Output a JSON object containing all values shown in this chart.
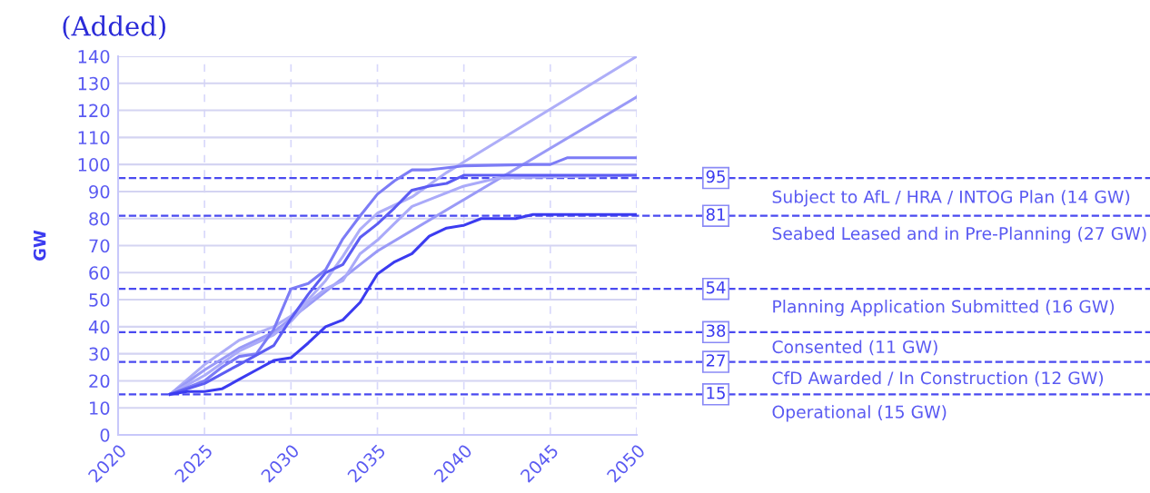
{
  "chart_data": {
    "type": "line",
    "title": "(Added)",
    "ylabel": "GW",
    "xlim": [
      2020,
      2050
    ],
    "xticks": [
      2020,
      2025,
      2030,
      2035,
      2040,
      2045,
      2050
    ],
    "ylim": [
      0,
      140
    ],
    "yticks": [
      0,
      10,
      20,
      30,
      40,
      50,
      60,
      70,
      80,
      90,
      100,
      110,
      120,
      130,
      140
    ],
    "grid": true,
    "marker": "none",
    "line_style": "solid",
    "series": [
      {
        "color": "#aeaef8",
        "x": [
          2023,
          2025,
          2027,
          2029,
          2030,
          2031,
          2032,
          2033,
          2034,
          2035,
          2037,
          2039,
          2050
        ],
        "values": [
          15,
          26,
          35,
          40,
          44,
          50,
          57,
          66,
          76,
          82,
          88,
          97,
          140
        ]
      },
      {
        "color": "#9a9af7",
        "x": [
          2023,
          2025,
          2027,
          2029,
          2030,
          2031,
          2032,
          2033,
          2034,
          2035,
          2050
        ],
        "values": [
          15,
          24,
          32,
          38,
          43,
          48,
          53,
          58,
          63,
          68,
          125
        ]
      },
      {
        "color": "#aaaaf9",
        "x": [
          2023,
          2025,
          2027,
          2029,
          2030,
          2031,
          2032,
          2033,
          2034,
          2035,
          2037,
          2040,
          2042,
          2050
        ],
        "values": [
          15,
          22,
          31,
          37,
          42,
          49,
          54,
          57,
          67,
          72,
          84.5,
          92,
          95,
          96
        ]
      },
      {
        "color": "#7c7cf6",
        "x": [
          2023,
          2025,
          2026,
          2027,
          2028,
          2029,
          2030,
          2031,
          2032,
          2033,
          2034,
          2035,
          2036,
          2037,
          2038,
          2040,
          2044,
          2045,
          2046,
          2050
        ],
        "values": [
          15,
          20,
          25,
          29,
          30,
          39,
          54,
          56,
          61,
          72.5,
          81,
          89,
          94,
          98,
          98,
          99.5,
          100,
          100,
          102.5,
          102.5
        ]
      },
      {
        "color": "#5c5cf3",
        "x": [
          2023,
          2025,
          2027,
          2029,
          2030,
          2031,
          2032,
          2033,
          2034,
          2035,
          2036,
          2037,
          2038,
          2039,
          2040,
          2050
        ],
        "values": [
          15,
          19,
          26,
          33,
          43,
          52,
          60,
          63,
          73,
          78,
          84,
          90.5,
          92,
          93,
          96,
          96
        ]
      },
      {
        "color": "#3b3bf0",
        "x": [
          2023,
          2024,
          2025,
          2026,
          2027,
          2028,
          2029,
          2030,
          2031,
          2032,
          2033,
          2034,
          2035,
          2036,
          2037,
          2038,
          2039,
          2040,
          2041,
          2043,
          2044,
          2050
        ],
        "values": [
          15,
          16,
          16,
          17,
          20.5,
          24,
          27.5,
          28.5,
          34,
          40,
          42.5,
          49,
          59.5,
          64,
          67,
          73.5,
          76.5,
          77.5,
          80,
          80,
          81.5,
          81.5
        ]
      }
    ],
    "ref_lines": [
      {
        "axis": "y",
        "value": 95,
        "label": "95",
        "color": "#4a4af0",
        "line_style": "dashed"
      },
      {
        "axis": "y",
        "value": 81,
        "label": "81",
        "color": "#4a4af0",
        "line_style": "dashed"
      },
      {
        "axis": "y",
        "value": 54,
        "label": "54",
        "color": "#4a4af0",
        "line_style": "dashed"
      },
      {
        "axis": "y",
        "value": 38,
        "label": "38",
        "color": "#4a4af0",
        "line_style": "dashed"
      },
      {
        "axis": "y",
        "value": 27,
        "label": "27",
        "color": "#4a4af0",
        "line_style": "dashed"
      },
      {
        "axis": "y",
        "value": 15,
        "label": "15",
        "color": "#4a4af0",
        "line_style": "dashed"
      }
    ],
    "annotations": [
      "Subject to AfL / HRA / INTOG Plan (14 GW)",
      "Seabed Leased and in Pre-Planning (27 GW)",
      "Planning Application Submitted (16 GW)",
      "Consented (11 GW)",
      "CfD Awarded / In Construction (12 GW)",
      "Operational (15 GW)"
    ]
  }
}
